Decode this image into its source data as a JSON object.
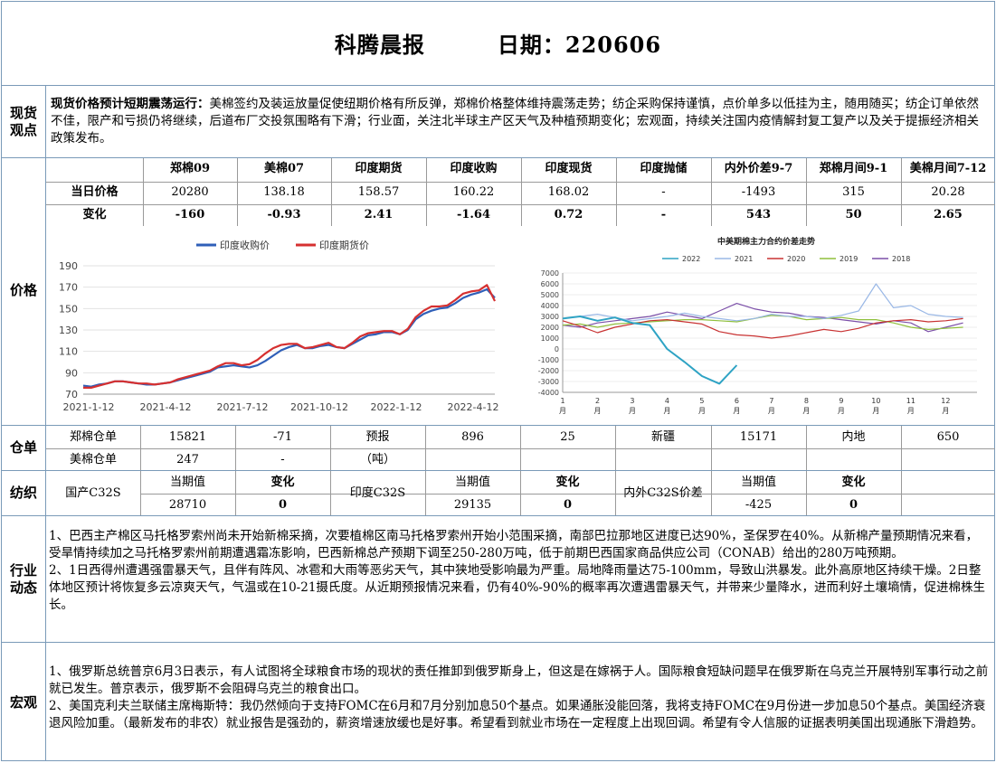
{
  "header": {
    "title": "科腾晨报",
    "date_label": "日期：220606"
  },
  "spot": {
    "section": "现货\n观点",
    "lead": "现货价格预计短期震荡运行：",
    "text": "美棉签约及装运放量促使纽期价格有所反弹，郑棉价格整体维持震荡走势；纺企采购保持谨慎，点价单多以低挂为主，随用随买；纺企订单依然不佳，限产和亏损仍将继续，后道布厂交投氛围略有下滑；行业面，关注北半球主产区天气及种植预期变化；宏观面，持续关注国内疫情解封复工复产以及关于提振经济相关政策发布。"
  },
  "price_table": {
    "section": "价格",
    "headers": [
      "郑棉09",
      "美棉07",
      "印度期货",
      "印度收购",
      "印度现货",
      "印度抛储",
      "内外价差9-7",
      "郑棉月间9-1",
      "美棉月间7-12"
    ],
    "rows": [
      {
        "label": "当日价格",
        "values": [
          "20280",
          "138.18",
          "158.57",
          "160.22",
          "168.02",
          "-",
          "-1493",
          "315",
          "20.28"
        ]
      },
      {
        "label": "变化",
        "values": [
          "-160",
          "-0.93",
          "2.41",
          "-1.64",
          "0.72",
          "-",
          "543",
          "50",
          "2.65"
        ]
      }
    ]
  },
  "chart_data": [
    {
      "type": "line",
      "title": "",
      "xlabel": "",
      "ylabel": "",
      "ylim": [
        70,
        190
      ],
      "yticks": [
        70,
        90,
        110,
        130,
        150,
        170,
        190
      ],
      "xtick_labels": [
        "2021-1-12",
        "2021-4-12",
        "2021-7-12",
        "2021-10-12",
        "2022-1-12",
        "2022-4-12"
      ],
      "x": [
        0,
        10,
        20,
        30,
        40,
        50,
        60,
        70,
        80,
        90,
        100,
        110,
        120,
        130,
        140,
        150,
        160,
        170,
        180,
        190,
        200,
        210,
        220,
        230,
        240,
        250,
        260,
        270,
        280,
        290,
        300,
        310,
        320,
        330,
        340,
        350,
        360,
        370,
        380,
        390,
        400,
        410,
        420,
        430,
        440,
        450,
        460,
        470,
        480,
        490,
        500,
        510,
        520
      ],
      "series": [
        {
          "name": "印度收购价",
          "color": "#2f5fb8",
          "values": [
            78,
            77,
            79,
            80,
            82,
            82,
            81,
            80,
            79,
            79,
            80,
            81,
            83,
            85,
            87,
            89,
            91,
            95,
            96,
            97,
            96,
            95,
            97,
            101,
            106,
            111,
            114,
            116,
            113,
            113,
            115,
            116,
            114,
            113,
            117,
            121,
            125,
            126,
            128,
            128,
            126,
            130,
            140,
            145,
            148,
            150,
            151,
            155,
            160,
            163,
            165,
            168,
            160
          ]
        },
        {
          "name": "印度期货价",
          "color": "#d63030",
          "values": [
            76,
            76,
            78,
            80,
            82,
            82,
            81,
            80,
            80,
            79,
            80,
            81,
            84,
            86,
            88,
            90,
            92,
            96,
            99,
            99,
            97,
            98,
            102,
            108,
            113,
            116,
            117,
            117,
            113,
            114,
            116,
            118,
            114,
            113,
            118,
            124,
            127,
            128,
            129,
            129,
            126,
            131,
            142,
            148,
            152,
            152,
            153,
            158,
            164,
            166,
            167,
            172,
            157
          ]
        }
      ]
    },
    {
      "type": "line",
      "title": "中美期棉主力合约价差走势",
      "xlabel": "",
      "ylabel": "",
      "ylim": [
        -4000,
        7000
      ],
      "yticks": [
        -4000,
        -3000,
        -2000,
        -1000,
        0,
        1000,
        2000,
        3000,
        4000,
        5000,
        6000,
        7000
      ],
      "xtick_labels": [
        "1\n月",
        "2\n月",
        "3\n月",
        "4\n月",
        "5\n月",
        "6\n月",
        "7\n月",
        "8\n月",
        "9\n月",
        "10\n月",
        "11\n月",
        "12\n月"
      ],
      "x": [
        1,
        1.5,
        2,
        2.5,
        3,
        3.5,
        4,
        4.5,
        5,
        5.5,
        6,
        6.5,
        7,
        7.5,
        8,
        8.5,
        9,
        9.5,
        10,
        10.5,
        11,
        11.5,
        12,
        12.5
      ],
      "series": [
        {
          "name": "2022",
          "color": "#2ea3c4",
          "values": [
            2800,
            3000,
            2600,
            2900,
            2400,
            2200,
            0,
            -1200,
            -2500,
            -3200,
            -1500,
            null,
            null,
            null,
            null,
            null,
            null,
            null,
            null,
            null,
            null,
            null,
            null,
            null
          ]
        },
        {
          "name": "2021",
          "color": "#9ab8e6",
          "values": [
            2800,
            3000,
            3200,
            2900,
            2600,
            2800,
            3000,
            3300,
            3000,
            2800,
            2600,
            2800,
            3200,
            3000,
            3000,
            2800,
            3100,
            3500,
            6000,
            3800,
            4000,
            3200,
            3000,
            2900
          ]
        },
        {
          "name": "2020",
          "color": "#c83232",
          "values": [
            2600,
            2100,
            1500,
            2000,
            2300,
            2600,
            2700,
            2500,
            2300,
            1600,
            1300,
            1200,
            1000,
            1200,
            1500,
            1800,
            1600,
            1900,
            2400,
            2600,
            2700,
            2500,
            2600,
            2800
          ]
        },
        {
          "name": "2019",
          "color": "#8fbf3c",
          "values": [
            2200,
            2300,
            2000,
            2300,
            2400,
            2500,
            2600,
            2700,
            2700,
            2600,
            2500,
            2800,
            3100,
            3000,
            2700,
            2800,
            2900,
            2700,
            2700,
            2400,
            2000,
            1800,
            1900,
            2000
          ]
        },
        {
          "name": "2018",
          "color": "#7b4fa8",
          "values": [
            2200,
            2000,
            2400,
            2600,
            2800,
            3000,
            3400,
            3100,
            2800,
            3500,
            4200,
            3700,
            3400,
            3300,
            3000,
            2900,
            2700,
            2500,
            2300,
            2600,
            2400,
            1600,
            2000,
            2400
          ]
        }
      ]
    }
  ],
  "warehouse": {
    "section": "仓单",
    "row1": [
      "郑棉仓单",
      "15821",
      "-71",
      "预报",
      "896",
      "25",
      "新疆",
      "15171",
      "内地",
      "650"
    ],
    "row2": [
      "美棉仓单",
      "247",
      "-",
      "（吨）"
    ]
  },
  "spinning": {
    "section": "纺织",
    "row1": [
      "当期值",
      "变化",
      "当期值",
      "变化",
      "当期值",
      "变化"
    ],
    "labels": [
      "国产C32S",
      "印度C32S",
      "内外C32S价差"
    ],
    "row2": [
      "28710",
      "0",
      "29135",
      "0",
      "-425",
      "0"
    ]
  },
  "industry": {
    "section": "行业\n动态",
    "p1": "1、巴西主产棉区马托格罗索州尚未开始新棉采摘，次要植棉区南马托格罗索州开始小范围采摘，南部巴拉那地区进度已达90%，圣保罗在40%。从新棉产量预期情况来看，受旱情持续加之马托格罗索州前期遭遇霜冻影响，巴西新棉总产预期下调至250-280万吨，低于前期巴西国家商品供应公司（CONAB）给出的280万吨预期。",
    "p2": "2、1日西得州遭遇强雷暴天气，且伴有阵风、冰雹和大雨等恶劣天气，其中狭地受影响最为严重。局地降雨量达75-100mm，导致山洪暴发。此外高原地区持续干燥。2日整体地区预计将恢复多云凉爽天气，气温或在10-21摄氏度。从近期预报情况来看，仍有40%-90%的概率再次遭遇雷暴天气，并带来少量降水，进而利好土壤墒情，促进棉株生长。"
  },
  "macro": {
    "section": "宏观",
    "p1": "1、俄罗斯总统普京6月3日表示，有人试图将全球粮食市场的现状的责任推卸到俄罗斯身上，但这是在嫁祸于人。国际粮食短缺问题早在俄罗斯在乌克兰开展特别军事行动之前就已发生。普京表示，俄罗斯不会阻碍乌克兰的粮食出口。",
    "p2": "2、美国克利夫兰联储主席梅斯特：我仍然倾向于支持FOMC在6月和7月分别加息50个基点。如果通胀没能回落，我将支持FOMC在9月份进一步加息50个基点。美国经济衰退风险加重。（最新发布的非农）就业报告是强劲的，薪资增速放缓也是好事。希望看到就业市场在一定程度上出现回调。希望有令人信服的证据表明美国出现通胀下滑趋势。"
  }
}
